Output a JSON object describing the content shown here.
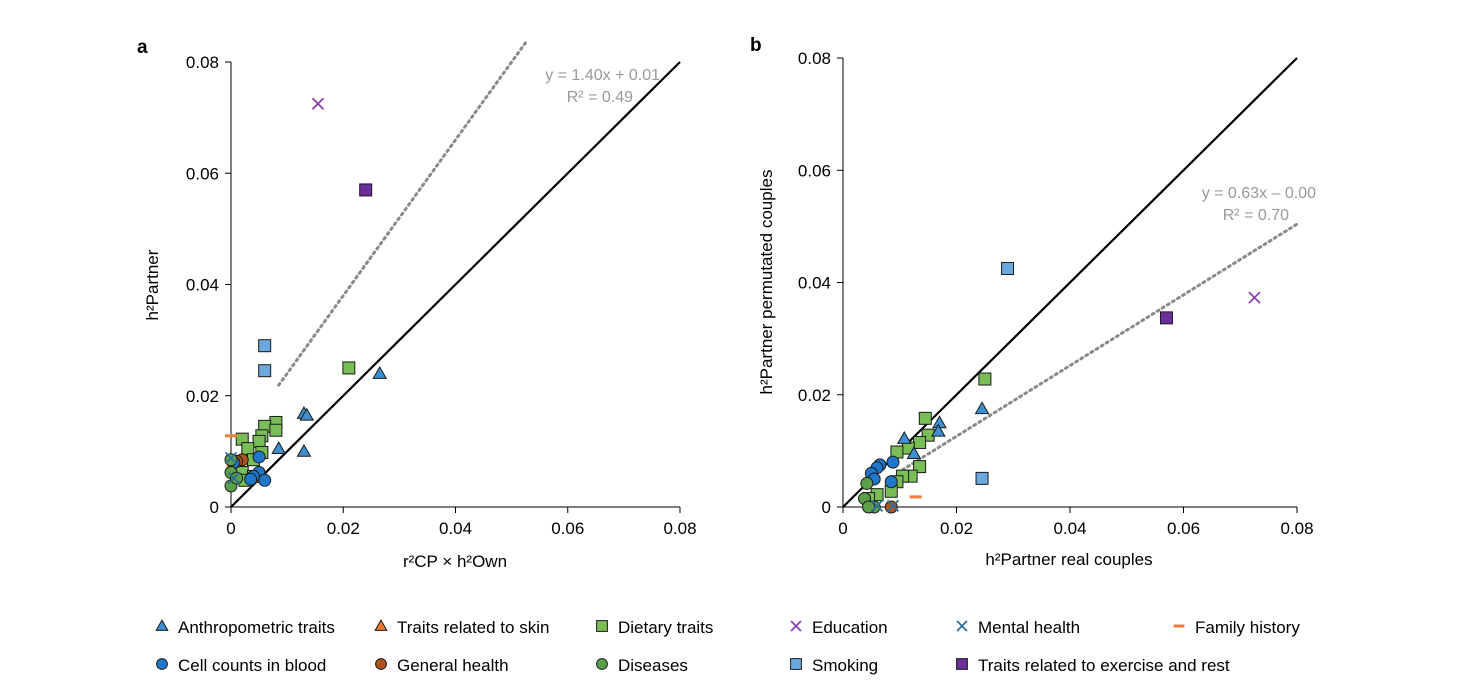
{
  "colors": {
    "anthropometric": "#3d8fcf",
    "skin": "#e8742e",
    "dietary": "#78bd55",
    "education": "#8e3fae",
    "mental": "#2d6f9b",
    "family": "#ee7d38",
    "blood": "#1f77c9",
    "general": "#b0521e",
    "diseases": "#5aa046",
    "smoking": "#6aa8dd",
    "exercise": "#6b2f9a",
    "fit": "#8a8a8a",
    "fit_text": "#999999"
  },
  "legend": [
    {
      "id": "anthropometric",
      "label": "Anthropometric traits",
      "marker": "triangle"
    },
    {
      "id": "skin",
      "label": "Traits related to skin",
      "marker": "triangle"
    },
    {
      "id": "dietary",
      "label": "Dietary traits",
      "marker": "square"
    },
    {
      "id": "education",
      "label": "Education",
      "marker": "x"
    },
    {
      "id": "mental",
      "label": "Mental health",
      "marker": "x"
    },
    {
      "id": "family",
      "label": "Family history",
      "marker": "dash"
    },
    {
      "id": "blood",
      "label": "Cell counts in blood",
      "marker": "circle"
    },
    {
      "id": "general",
      "label": "General health",
      "marker": "circle"
    },
    {
      "id": "diseases",
      "label": "Diseases",
      "marker": "circle"
    },
    {
      "id": "smoking",
      "label": "Smoking",
      "marker": "square"
    },
    {
      "id": "exercise",
      "label": "Traits related to exercise and rest",
      "marker": "square"
    }
  ],
  "chart_data": [
    {
      "type": "scatter",
      "panel": "a",
      "xlim": [
        0,
        0.08
      ],
      "ylim": [
        0,
        0.08
      ],
      "xticks": [
        "0",
        "0.02",
        "0.04",
        "0.06",
        "0.08"
      ],
      "yticks": [
        "0",
        "0.02",
        "0.04",
        "0.06",
        "0.08"
      ],
      "xlabel": "r²CP × h²Own",
      "ylabel": "h²Partner",
      "identity_line": true,
      "fit": {
        "slope": 1.4,
        "intercept": 0.01,
        "x_range": [
          0.0085,
          0.0525
        ],
        "equation": "y = 1.40x + 0.01",
        "r2": "R² = 0.49"
      },
      "points": [
        {
          "g": "education",
          "x": 0.0155,
          "y": 0.0725
        },
        {
          "g": "exercise",
          "x": 0.024,
          "y": 0.057
        },
        {
          "g": "smoking",
          "x": 0.006,
          "y": 0.029
        },
        {
          "g": "smoking",
          "x": 0.006,
          "y": 0.0245
        },
        {
          "g": "dietary",
          "x": 0.021,
          "y": 0.025
        },
        {
          "g": "anthropometric",
          "x": 0.0265,
          "y": 0.024
        },
        {
          "g": "anthropometric",
          "x": 0.013,
          "y": 0.0168
        },
        {
          "g": "anthropometric",
          "x": 0.0135,
          "y": 0.0165
        },
        {
          "g": "anthropometric",
          "x": 0.0085,
          "y": 0.0105
        },
        {
          "g": "anthropometric",
          "x": 0.013,
          "y": 0.01
        },
        {
          "g": "dietary",
          "x": 0.008,
          "y": 0.0152
        },
        {
          "g": "dietary",
          "x": 0.006,
          "y": 0.0145
        },
        {
          "g": "dietary",
          "x": 0.008,
          "y": 0.0138
        },
        {
          "g": "dietary",
          "x": 0.0055,
          "y": 0.0128
        },
        {
          "g": "dietary",
          "x": 0.002,
          "y": 0.0122
        },
        {
          "g": "dietary",
          "x": 0.005,
          "y": 0.0118
        },
        {
          "g": "dietary",
          "x": 0.003,
          "y": 0.0105
        },
        {
          "g": "dietary",
          "x": 0.0055,
          "y": 0.0098
        },
        {
          "g": "dietary",
          "x": 0.004,
          "y": 0.0085
        },
        {
          "g": "dietary",
          "x": 0.002,
          "y": 0.0062
        },
        {
          "g": "dietary",
          "x": 0.004,
          "y": 0.0055
        },
        {
          "g": "dietary",
          "x": 0.0025,
          "y": 0.0048
        },
        {
          "g": "family",
          "x": 0.0,
          "y": 0.0128
        },
        {
          "g": "family",
          "x": 0.0003,
          "y": 0.0073
        },
        {
          "g": "general",
          "x": 0.002,
          "y": 0.0085
        },
        {
          "g": "general",
          "x": 0.001,
          "y": 0.0082
        },
        {
          "g": "blood",
          "x": 0.005,
          "y": 0.009
        },
        {
          "g": "blood",
          "x": 0.0005,
          "y": 0.008
        },
        {
          "g": "blood",
          "x": 0.005,
          "y": 0.0062
        },
        {
          "g": "blood",
          "x": 0.004,
          "y": 0.0055
        },
        {
          "g": "blood",
          "x": 0.006,
          "y": 0.0048
        },
        {
          "g": "blood",
          "x": 0.0035,
          "y": 0.005
        },
        {
          "g": "diseases",
          "x": 0.0,
          "y": 0.0085
        },
        {
          "g": "diseases",
          "x": 0.0,
          "y": 0.0062
        },
        {
          "g": "diseases",
          "x": 0.0,
          "y": 0.0038
        },
        {
          "g": "diseases",
          "x": 0.001,
          "y": 0.0052
        },
        {
          "g": "mental",
          "x": 0.0,
          "y": 0.0088
        },
        {
          "g": "mental",
          "x": 0.0005,
          "y": 0.0052
        }
      ]
    },
    {
      "type": "scatter",
      "panel": "b",
      "xlim": [
        0,
        0.08
      ],
      "ylim": [
        0,
        0.08
      ],
      "xticks": [
        "0",
        "0.02",
        "0.04",
        "0.06",
        "0.08"
      ],
      "yticks": [
        "0",
        "0.02",
        "0.04",
        "0.06",
        "0.08"
      ],
      "xlabel": "h²Partner real couples",
      "ylabel": "h²Partner permutated couples",
      "identity_line": true,
      "fit": {
        "slope": 0.63,
        "intercept": 0.0,
        "x_range": [
          0.0105,
          0.08
        ],
        "equation": "y = 0.63x – 0.00",
        "r2": "R² = 0.70"
      },
      "points": [
        {
          "g": "education",
          "x": 0.0725,
          "y": 0.0373
        },
        {
          "g": "exercise",
          "x": 0.057,
          "y": 0.0337
        },
        {
          "g": "smoking",
          "x": 0.029,
          "y": 0.0425
        },
        {
          "g": "smoking",
          "x": 0.0245,
          "y": 0.0051
        },
        {
          "g": "dietary",
          "x": 0.025,
          "y": 0.0228
        },
        {
          "g": "dietary",
          "x": 0.0145,
          "y": 0.0158
        },
        {
          "g": "dietary",
          "x": 0.015,
          "y": 0.0128
        },
        {
          "g": "dietary",
          "x": 0.0135,
          "y": 0.0115
        },
        {
          "g": "dietary",
          "x": 0.0115,
          "y": 0.0105
        },
        {
          "g": "dietary",
          "x": 0.0095,
          "y": 0.0098
        },
        {
          "g": "dietary",
          "x": 0.0135,
          "y": 0.0072
        },
        {
          "g": "dietary",
          "x": 0.012,
          "y": 0.0055
        },
        {
          "g": "dietary",
          "x": 0.0105,
          "y": 0.0055
        },
        {
          "g": "dietary",
          "x": 0.0095,
          "y": 0.0045
        },
        {
          "g": "dietary",
          "x": 0.0085,
          "y": 0.0028
        },
        {
          "g": "dietary",
          "x": 0.006,
          "y": 0.0022
        },
        {
          "g": "dietary",
          "x": 0.0045,
          "y": 0.0015
        },
        {
          "g": "anthropometric",
          "x": 0.0245,
          "y": 0.0175
        },
        {
          "g": "anthropometric",
          "x": 0.017,
          "y": 0.015
        },
        {
          "g": "anthropometric",
          "x": 0.0168,
          "y": 0.0135
        },
        {
          "g": "anthropometric",
          "x": 0.0108,
          "y": 0.0122
        },
        {
          "g": "anthropometric",
          "x": 0.0125,
          "y": 0.0095
        },
        {
          "g": "family",
          "x": 0.0128,
          "y": 0.0018
        },
        {
          "g": "blood",
          "x": 0.0065,
          "y": 0.0075
        },
        {
          "g": "blood",
          "x": 0.006,
          "y": 0.007
        },
        {
          "g": "blood",
          "x": 0.005,
          "y": 0.006
        },
        {
          "g": "blood",
          "x": 0.0055,
          "y": 0.005
        },
        {
          "g": "blood",
          "x": 0.0088,
          "y": 0.008
        },
        {
          "g": "blood",
          "x": 0.0085,
          "y": 0.0045
        },
        {
          "g": "diseases",
          "x": 0.0042,
          "y": 0.0042
        },
        {
          "g": "diseases",
          "x": 0.0038,
          "y": 0.0015
        },
        {
          "g": "diseases",
          "x": 0.0055,
          "y": 0.0
        },
        {
          "g": "diseases",
          "x": 0.0045,
          "y": 0.0
        },
        {
          "g": "general",
          "x": 0.0085,
          "y": 0.0
        },
        {
          "g": "mental",
          "x": 0.0088,
          "y": 0.0002
        },
        {
          "g": "mental",
          "x": 0.006,
          "y": 0.0002
        }
      ]
    }
  ]
}
